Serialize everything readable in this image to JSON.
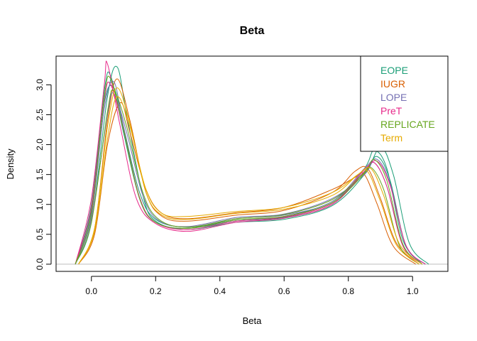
{
  "chart_data": {
    "type": "line",
    "title": "Beta",
    "xlabel": "Beta",
    "ylabel": "Density",
    "xlim": [
      -0.11,
      1.11
    ],
    "ylim": [
      -0.12,
      3.48
    ],
    "x_ticks": [
      0.0,
      0.2,
      0.4,
      0.6,
      0.8,
      1.0
    ],
    "x_tick_labels": [
      "0.0",
      "0.2",
      "0.4",
      "0.6",
      "0.8",
      "1.0"
    ],
    "y_ticks": [
      0.0,
      0.5,
      1.0,
      1.5,
      2.0,
      2.5,
      3.0
    ],
    "y_tick_labels": [
      "0.0",
      "0.5",
      "1.0",
      "1.5",
      "2.0",
      "2.5",
      "3.0"
    ],
    "grid": false,
    "baseline": 0,
    "legend": {
      "position": "top-right",
      "entries": [
        {
          "label": "EOPE",
          "color": "#1B9E77"
        },
        {
          "label": "IUGR",
          "color": "#D95F02"
        },
        {
          "label": "LOPE",
          "color": "#7570B3"
        },
        {
          "label": "PreT",
          "color": "#E7298A"
        },
        {
          "label": "REPLICATE",
          "color": "#66A61E"
        },
        {
          "label": "Term",
          "color": "#E6AB02"
        }
      ]
    },
    "series": [
      {
        "group": "EOPE",
        "color": "#1B9E77",
        "x": [
          -0.05,
          0.0,
          0.04,
          0.06,
          0.1,
          0.15,
          0.2,
          0.3,
          0.45,
          0.6,
          0.75,
          0.85,
          0.88,
          0.92,
          0.97,
          1.03
        ],
        "y": [
          0.0,
          1.0,
          2.9,
          3.15,
          2.2,
          1.1,
          0.7,
          0.6,
          0.72,
          0.78,
          1.0,
          1.6,
          1.9,
          1.6,
          0.4,
          0.0
        ]
      },
      {
        "group": "EOPE",
        "color": "#1B9E77",
        "x": [
          -0.05,
          0.0,
          0.04,
          0.07,
          0.1,
          0.15,
          0.2,
          0.3,
          0.45,
          0.6,
          0.75,
          0.85,
          0.89,
          0.93,
          0.98,
          1.04
        ],
        "y": [
          0.0,
          0.9,
          2.7,
          2.95,
          2.3,
          1.2,
          0.75,
          0.62,
          0.74,
          0.8,
          1.05,
          1.55,
          1.8,
          1.4,
          0.3,
          0.0
        ]
      },
      {
        "group": "EOPE",
        "color": "#1B9E77",
        "x": [
          -0.05,
          0.0,
          0.05,
          0.08,
          0.11,
          0.16,
          0.2,
          0.3,
          0.45,
          0.6,
          0.75,
          0.85,
          0.9,
          0.94,
          0.99,
          1.05
        ],
        "y": [
          0.0,
          0.7,
          2.8,
          3.3,
          2.5,
          1.15,
          0.72,
          0.58,
          0.7,
          0.75,
          0.98,
          1.5,
          1.95,
          1.5,
          0.35,
          0.0
        ]
      },
      {
        "group": "IUGR",
        "color": "#D95F02",
        "x": [
          -0.04,
          0.01,
          0.05,
          0.08,
          0.12,
          0.17,
          0.22,
          0.3,
          0.45,
          0.6,
          0.75,
          0.82,
          0.86,
          0.9,
          0.95,
          1.02
        ],
        "y": [
          0.0,
          0.6,
          2.4,
          3.1,
          2.4,
          1.2,
          0.8,
          0.72,
          0.82,
          0.9,
          1.2,
          1.55,
          1.6,
          1.1,
          0.35,
          0.0
        ]
      },
      {
        "group": "IUGR",
        "color": "#D95F02",
        "x": [
          -0.04,
          0.01,
          0.05,
          0.09,
          0.12,
          0.17,
          0.22,
          0.3,
          0.45,
          0.6,
          0.75,
          0.82,
          0.85,
          0.89,
          0.94,
          1.01
        ],
        "y": [
          0.0,
          0.5,
          2.0,
          2.7,
          2.2,
          1.25,
          0.85,
          0.76,
          0.86,
          0.95,
          1.25,
          1.45,
          1.5,
          1.0,
          0.3,
          0.0
        ]
      },
      {
        "group": "LOPE",
        "color": "#7570B3",
        "x": [
          -0.05,
          0.0,
          0.04,
          0.07,
          0.1,
          0.15,
          0.2,
          0.3,
          0.45,
          0.6,
          0.75,
          0.85,
          0.89,
          0.93,
          0.98,
          1.04
        ],
        "y": [
          0.0,
          0.8,
          2.6,
          3.05,
          2.3,
          1.1,
          0.7,
          0.6,
          0.76,
          0.82,
          1.05,
          1.6,
          1.75,
          1.35,
          0.3,
          0.0
        ]
      },
      {
        "group": "LOPE",
        "color": "#7570B3",
        "x": [
          -0.05,
          0.0,
          0.05,
          0.07,
          0.11,
          0.16,
          0.21,
          0.3,
          0.45,
          0.6,
          0.75,
          0.85,
          0.88,
          0.92,
          0.97,
          1.03
        ],
        "y": [
          0.0,
          0.75,
          2.5,
          2.85,
          2.2,
          1.15,
          0.73,
          0.63,
          0.78,
          0.84,
          1.1,
          1.5,
          1.7,
          1.3,
          0.32,
          0.0
        ]
      },
      {
        "group": "PreT",
        "color": "#E7298A",
        "x": [
          -0.05,
          0.0,
          0.04,
          0.05,
          0.09,
          0.14,
          0.2,
          0.3,
          0.45,
          0.6,
          0.75,
          0.85,
          0.88,
          0.92,
          0.97,
          1.03
        ],
        "y": [
          0.0,
          1.1,
          3.0,
          3.35,
          2.3,
          1.1,
          0.68,
          0.55,
          0.7,
          0.77,
          1.0,
          1.55,
          1.7,
          1.3,
          0.3,
          0.0
        ]
      },
      {
        "group": "PreT",
        "color": "#E7298A",
        "x": [
          -0.05,
          0.0,
          0.04,
          0.06,
          0.1,
          0.15,
          0.2,
          0.3,
          0.45,
          0.6,
          0.75,
          0.85,
          0.89,
          0.93,
          0.98,
          1.04
        ],
        "y": [
          0.0,
          0.95,
          2.75,
          3.0,
          2.25,
          1.12,
          0.7,
          0.58,
          0.72,
          0.79,
          1.02,
          1.58,
          1.72,
          1.32,
          0.31,
          0.0
        ]
      },
      {
        "group": "REPLICATE",
        "color": "#66A61E",
        "x": [
          -0.05,
          0.0,
          0.04,
          0.06,
          0.1,
          0.15,
          0.2,
          0.3,
          0.45,
          0.6,
          0.75,
          0.85,
          0.88,
          0.92,
          0.97,
          1.03
        ],
        "y": [
          0.0,
          0.85,
          2.8,
          3.1,
          2.25,
          1.1,
          0.7,
          0.6,
          0.74,
          0.8,
          1.03,
          1.52,
          1.75,
          1.4,
          0.33,
          0.0
        ]
      },
      {
        "group": "REPLICATE",
        "color": "#66A61E",
        "x": [
          -0.05,
          0.0,
          0.05,
          0.07,
          0.11,
          0.16,
          0.21,
          0.3,
          0.45,
          0.6,
          0.75,
          0.84,
          0.87,
          0.91,
          0.96,
          1.02
        ],
        "y": [
          0.0,
          0.7,
          2.55,
          2.9,
          2.3,
          1.2,
          0.75,
          0.62,
          0.76,
          0.83,
          1.08,
          1.48,
          1.62,
          1.25,
          0.3,
          0.0
        ]
      },
      {
        "group": "Term",
        "color": "#E6AB02",
        "x": [
          -0.04,
          0.01,
          0.05,
          0.08,
          0.12,
          0.17,
          0.22,
          0.3,
          0.45,
          0.6,
          0.75,
          0.83,
          0.86,
          0.9,
          0.95,
          1.02
        ],
        "y": [
          0.0,
          0.55,
          2.1,
          2.8,
          2.3,
          1.25,
          0.85,
          0.8,
          0.88,
          0.95,
          1.2,
          1.5,
          1.55,
          1.05,
          0.32,
          0.0
        ]
      },
      {
        "group": "Term",
        "color": "#E6AB02",
        "x": [
          -0.04,
          0.01,
          0.05,
          0.08,
          0.12,
          0.17,
          0.22,
          0.3,
          0.45,
          0.6,
          0.75,
          0.83,
          0.87,
          0.91,
          0.96,
          1.03
        ],
        "y": [
          0.0,
          0.6,
          2.3,
          2.95,
          2.35,
          1.2,
          0.82,
          0.75,
          0.85,
          0.92,
          1.15,
          1.5,
          1.6,
          1.15,
          0.33,
          0.0
        ]
      }
    ]
  }
}
